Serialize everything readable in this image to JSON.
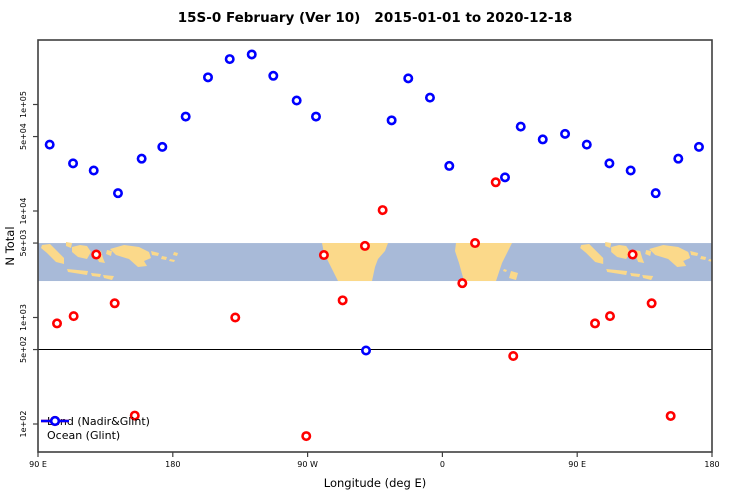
{
  "chart_data": {
    "type": "scatter",
    "title": "15S-0 February (Ver 10)   2015-01-01 to 2020-12-18",
    "xlabel": "Longitude (deg E)",
    "ylabel": "N Total",
    "x_axis": {
      "min": 90,
      "max": 540,
      "ticks": [
        {
          "lon": 90,
          "label": "90 E"
        },
        {
          "lon": 180,
          "label": "180"
        },
        {
          "lon": 270,
          "label": "90 W"
        },
        {
          "lon": 360,
          "label": "0"
        },
        {
          "lon": 450,
          "label": "90 E"
        },
        {
          "lon": 540,
          "label": "180"
        }
      ]
    },
    "y_axis": {
      "scale": "log",
      "min": 55,
      "max": 400000,
      "ticks": [
        {
          "value": 100,
          "label": "1e+02"
        },
        {
          "value": 500,
          "label": "5e+02"
        },
        {
          "value": 1000,
          "label": "1e+03"
        },
        {
          "value": 5000,
          "label": "5e+03"
        },
        {
          "value": 10000,
          "label": "1e+04"
        },
        {
          "value": 50000,
          "label": "5e+04"
        },
        {
          "value": 100000,
          "label": "1e+05"
        }
      ]
    },
    "reference_line_value": 500,
    "map_band": {
      "description": "World coastline strip (latitudes 15S-0) drawn across plot",
      "top_value": 5000,
      "bottom_value": 2200,
      "ocean_color": "#A8BAD8",
      "land_color": "#FBD98A"
    },
    "series": [
      {
        "name": "Land (Nadir&Glint)",
        "color": "#FF0000",
        "points": [
          [
            102.7,
            880
          ],
          [
            113.8,
            1030
          ],
          [
            128.9,
            3900
          ],
          [
            141.2,
            1360
          ],
          [
            154.6,
            120
          ],
          [
            221.7,
            1000
          ],
          [
            269.1,
            77
          ],
          [
            280.9,
            3860
          ],
          [
            293.4,
            1450
          ],
          [
            308.3,
            4700
          ],
          [
            320.1,
            10200
          ],
          [
            373.3,
            2100
          ],
          [
            381.8,
            5000
          ],
          [
            395.6,
            18600
          ],
          [
            407.3,
            435
          ],
          [
            461.9,
            880
          ],
          [
            471.9,
            1030
          ],
          [
            487.0,
            3900
          ],
          [
            499.7,
            1360
          ],
          [
            512.4,
            119
          ]
        ]
      },
      {
        "name": "Ocean (Glint)",
        "color": "#0000FF",
        "points": [
          [
            97.8,
            42000
          ],
          [
            113.4,
            28000
          ],
          [
            127.2,
            24000
          ],
          [
            143.4,
            14700
          ],
          [
            159.2,
            31000
          ],
          [
            173.0,
            40000
          ],
          [
            188.6,
            77000
          ],
          [
            203.5,
            180000
          ],
          [
            218.0,
            267000
          ],
          [
            232.7,
            295000
          ],
          [
            247.1,
            186000
          ],
          [
            262.7,
            109000
          ],
          [
            275.6,
            77000
          ],
          [
            309.0,
            490
          ],
          [
            326.1,
            71000
          ],
          [
            337.2,
            176000
          ],
          [
            351.7,
            116000
          ],
          [
            364.6,
            26500
          ],
          [
            401.8,
            20700
          ],
          [
            412.3,
            62000
          ],
          [
            427.0,
            47000
          ],
          [
            441.9,
            53000
          ],
          [
            456.4,
            42000
          ],
          [
            471.5,
            28000
          ],
          [
            485.7,
            24000
          ],
          [
            502.4,
            14700
          ],
          [
            517.5,
            31000
          ],
          [
            531.3,
            40000
          ]
        ]
      }
    ],
    "axis_color": "#3F3F3F"
  }
}
